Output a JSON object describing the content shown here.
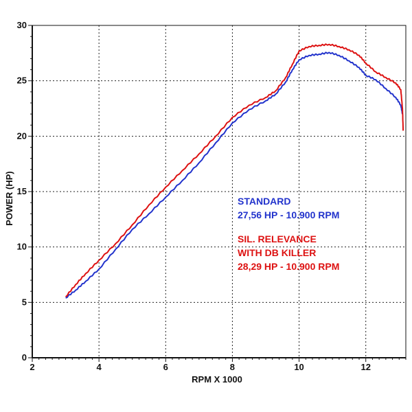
{
  "chart_data": {
    "type": "line",
    "xlabel": "RPM X 1000",
    "ylabel": "POWER (HP)",
    "xlim": [
      2,
      13.2
    ],
    "ylim": [
      0,
      30
    ],
    "x_ticks": [
      "2",
      "4",
      "6",
      "8",
      "10",
      "12"
    ],
    "y_ticks": [
      "0",
      "5",
      "10",
      "15",
      "20",
      "25",
      "30"
    ],
    "grid": true,
    "series": [
      {
        "name": "STANDARD",
        "color": "#2233cc",
        "x": [
          3.0,
          3.3,
          3.6,
          4.0,
          4.5,
          5.0,
          5.5,
          6.0,
          6.5,
          7.0,
          7.5,
          8.0,
          8.5,
          9.0,
          9.3,
          9.6,
          9.8,
          10.0,
          10.3,
          10.6,
          10.9,
          11.2,
          11.5,
          11.8,
          12.0,
          12.3,
          12.6,
          12.9,
          13.05,
          13.1
        ],
        "y": [
          5.4,
          6.1,
          6.9,
          8.0,
          9.8,
          11.6,
          13.0,
          14.5,
          16.0,
          17.6,
          19.4,
          21.2,
          22.4,
          23.2,
          23.8,
          24.9,
          26.0,
          26.9,
          27.3,
          27.4,
          27.56,
          27.3,
          26.8,
          26.2,
          25.5,
          25.1,
          24.3,
          23.5,
          22.8,
          22.0
        ]
      },
      {
        "name": "SIL. RELEVANCE WITH DB KILLER",
        "color": "#dd1111",
        "x": [
          3.0,
          3.3,
          3.6,
          4.0,
          4.5,
          5.0,
          5.5,
          6.0,
          6.5,
          7.0,
          7.5,
          8.0,
          8.5,
          9.0,
          9.3,
          9.6,
          9.8,
          10.0,
          10.3,
          10.6,
          10.9,
          11.2,
          11.5,
          11.8,
          12.0,
          12.3,
          12.6,
          12.9,
          13.05,
          13.1,
          13.12
        ],
        "y": [
          5.5,
          6.6,
          7.6,
          8.8,
          10.3,
          12.0,
          13.8,
          15.4,
          16.9,
          18.4,
          20.0,
          21.7,
          22.8,
          23.5,
          24.1,
          25.3,
          26.5,
          27.7,
          28.1,
          28.2,
          28.29,
          28.1,
          27.8,
          27.3,
          26.6,
          25.8,
          25.3,
          24.8,
          24.2,
          22.5,
          20.5
        ]
      }
    ]
  },
  "annotations": {
    "standard_title": "STANDARD",
    "standard_value": "27,56 HP - 10.900 RPM",
    "relevance_title_1": "SIL. RELEVANCE",
    "relevance_title_2": "WITH DB KILLER",
    "relevance_value": "28,29 HP - 10.900 RPM"
  }
}
